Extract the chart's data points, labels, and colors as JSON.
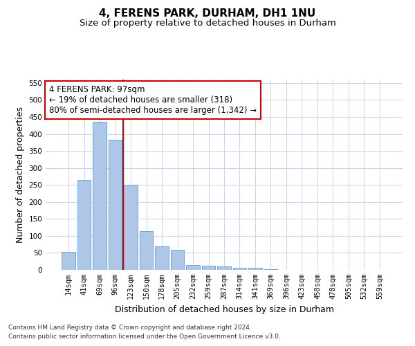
{
  "title": "4, FERENS PARK, DURHAM, DH1 1NU",
  "subtitle": "Size of property relative to detached houses in Durham",
  "xlabel": "Distribution of detached houses by size in Durham",
  "ylabel": "Number of detached properties",
  "categories": [
    "14sqm",
    "41sqm",
    "69sqm",
    "96sqm",
    "123sqm",
    "150sqm",
    "178sqm",
    "205sqm",
    "232sqm",
    "259sqm",
    "287sqm",
    "314sqm",
    "341sqm",
    "369sqm",
    "396sqm",
    "423sqm",
    "450sqm",
    "478sqm",
    "505sqm",
    "532sqm",
    "559sqm"
  ],
  "values": [
    52,
    265,
    435,
    382,
    251,
    115,
    70,
    60,
    15,
    13,
    10,
    7,
    6,
    3,
    0,
    0,
    1,
    0,
    0,
    0,
    0
  ],
  "bar_color": "#aec6e8",
  "bar_edge_color": "#5a9fd4",
  "annotation_text": "4 FERENS PARK: 97sqm\n← 19% of detached houses are smaller (318)\n80% of semi-detached houses are larger (1,342) →",
  "annotation_box_color": "#ffffff",
  "annotation_box_edge_color": "#cc0000",
  "vline_color": "#cc0000",
  "ylim": [
    0,
    560
  ],
  "yticks": [
    0,
    50,
    100,
    150,
    200,
    250,
    300,
    350,
    400,
    450,
    500,
    550
  ],
  "footnote1": "Contains HM Land Registry data © Crown copyright and database right 2024.",
  "footnote2": "Contains public sector information licensed under the Open Government Licence v3.0.",
  "bg_color": "#ffffff",
  "grid_color": "#c8d4e8",
  "title_fontsize": 11,
  "subtitle_fontsize": 9.5,
  "axis_label_fontsize": 9,
  "tick_fontsize": 7.5,
  "annotation_fontsize": 8.5,
  "footnote_fontsize": 6.5
}
